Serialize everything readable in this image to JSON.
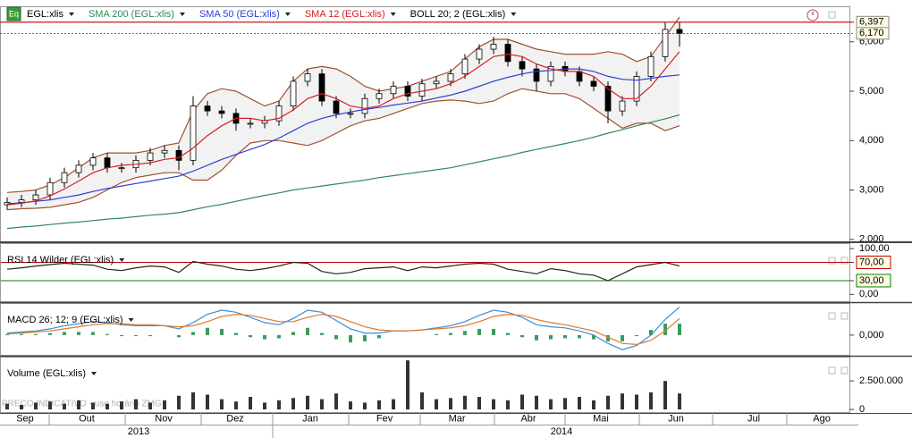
{
  "icon_label": "Eq",
  "watermark": "PREÇO INDICATIVO - uso horário ZMG",
  "chart_data": [
    {
      "type": "candlestick",
      "categories": [
        null,
        null,
        null,
        null,
        null,
        null,
        null,
        null,
        null,
        null,
        null,
        null,
        null,
        null,
        null,
        null,
        null,
        null,
        null,
        null,
        null,
        null,
        null,
        null,
        null,
        null,
        null,
        null,
        null,
        null,
        null,
        null,
        null,
        null,
        null,
        null,
        null,
        null,
        null,
        null,
        null,
        null,
        null,
        null,
        null,
        null,
        null,
        null
      ],
      "xlim": [
        -0.5,
        58.875
      ],
      "ylim": [
        1.96,
        6.52
      ],
      "yticks": [
        {
          "value": 2,
          "label": "2,000"
        },
        {
          "value": 3,
          "label": "3,000"
        },
        {
          "value": 4,
          "label": "4,000"
        },
        {
          "value": 5,
          "label": "5,000"
        },
        {
          "value": 6,
          "label": "6,000"
        }
      ],
      "price_labels": [
        {
          "value": 6.397,
          "label": "6,397",
          "color": "#c00000"
        },
        {
          "value": 6.17,
          "label": "6,170",
          "color": "#c00000"
        }
      ],
      "series": [
        {
          "name": "EGL:xlis",
          "type": "candlestick",
          "color": "#000000",
          "open": [
            2.7,
            2.75,
            2.8,
            2.9,
            3.15,
            3.35,
            3.5,
            3.65,
            3.45,
            3.45,
            3.6,
            3.75,
            3.8,
            3.6,
            4.7,
            4.6,
            4.55,
            4.35,
            4.35,
            4.4,
            4.7,
            5.2,
            5.35,
            4.8,
            4.55,
            4.55,
            4.85,
            4.95,
            5.1,
            4.9,
            5.15,
            5.2,
            5.35,
            5.65,
            5.85,
            5.95,
            5.6,
            5.45,
            5.2,
            5.5,
            5.4,
            5.2,
            5.1,
            4.6,
            4.8,
            5.3,
            5.7,
            6.25
          ],
          "high": [
            2.85,
            2.9,
            3.0,
            3.25,
            3.45,
            3.6,
            3.75,
            3.75,
            3.55,
            3.7,
            3.85,
            3.9,
            3.9,
            4.9,
            4.8,
            4.7,
            4.65,
            4.45,
            4.5,
            4.8,
            5.3,
            5.45,
            5.45,
            4.9,
            4.65,
            4.95,
            5.05,
            5.2,
            5.2,
            5.25,
            5.3,
            5.45,
            5.75,
            5.95,
            6.1,
            6.05,
            5.7,
            5.55,
            5.6,
            5.6,
            5.5,
            5.3,
            5.2,
            4.9,
            5.4,
            5.8,
            6.4,
            6.4
          ],
          "low": [
            2.6,
            2.65,
            2.7,
            2.8,
            3.05,
            3.25,
            3.4,
            3.35,
            3.35,
            3.35,
            3.5,
            3.65,
            3.4,
            3.5,
            4.5,
            4.45,
            4.2,
            4.25,
            4.25,
            4.3,
            4.6,
            5.1,
            4.7,
            4.45,
            4.45,
            4.45,
            4.75,
            4.85,
            4.8,
            4.8,
            5.05,
            5.1,
            5.25,
            5.55,
            5.75,
            5.5,
            5.3,
            5.0,
            5.1,
            5.3,
            5.1,
            5.0,
            4.35,
            4.5,
            4.7,
            5.2,
            5.6,
            5.9
          ],
          "close": [
            2.75,
            2.8,
            2.9,
            3.15,
            3.35,
            3.5,
            3.65,
            3.45,
            3.45,
            3.6,
            3.75,
            3.8,
            3.6,
            4.7,
            4.6,
            4.55,
            4.35,
            4.35,
            4.4,
            4.7,
            5.2,
            5.35,
            4.8,
            4.55,
            4.55,
            4.85,
            4.95,
            5.1,
            4.9,
            5.15,
            5.2,
            5.35,
            5.65,
            5.85,
            5.95,
            5.6,
            5.45,
            5.2,
            5.5,
            5.4,
            5.2,
            5.1,
            4.6,
            4.8,
            5.3,
            5.7,
            6.25,
            6.17
          ]
        },
        {
          "name": "SMA 200 (EGL:xlis)",
          "type": "line",
          "color": "#2e8b57",
          "values": [
            2.22,
            2.25,
            2.27,
            2.3,
            2.33,
            2.35,
            2.38,
            2.41,
            2.43,
            2.46,
            2.49,
            2.51,
            2.54,
            2.6,
            2.66,
            2.71,
            2.77,
            2.83,
            2.89,
            2.94,
            3.0,
            3.04,
            3.08,
            3.12,
            3.16,
            3.2,
            3.25,
            3.29,
            3.33,
            3.37,
            3.41,
            3.45,
            3.51,
            3.57,
            3.63,
            3.69,
            3.76,
            3.82,
            3.88,
            3.94,
            4.0,
            4.07,
            4.15,
            4.22,
            4.3,
            4.37,
            4.44,
            4.52
          ]
        },
        {
          "name": "SMA 50 (EGL:xlis)",
          "type": "line",
          "color": "#2d3ed6",
          "values": [
            2.72,
            2.74,
            2.77,
            2.8,
            2.85,
            2.9,
            2.97,
            3.03,
            3.08,
            3.13,
            3.18,
            3.23,
            3.28,
            3.38,
            3.5,
            3.62,
            3.72,
            3.82,
            3.92,
            4.05,
            4.2,
            4.35,
            4.45,
            4.52,
            4.58,
            4.63,
            4.67,
            4.72,
            4.76,
            4.8,
            4.86,
            4.92,
            5.0,
            5.1,
            5.2,
            5.28,
            5.35,
            5.4,
            5.42,
            5.45,
            5.45,
            5.4,
            5.3,
            5.24,
            5.22,
            5.26,
            5.3,
            5.33
          ]
        },
        {
          "name": "SMA 12 (EGL:xlis)",
          "type": "line",
          "color": "#d42020",
          "values": [
            2.7,
            2.73,
            2.78,
            2.88,
            3.02,
            3.18,
            3.35,
            3.45,
            3.5,
            3.52,
            3.55,
            3.62,
            3.65,
            3.85,
            4.1,
            4.3,
            4.45,
            4.45,
            4.4,
            4.45,
            4.62,
            4.85,
            4.95,
            4.85,
            4.7,
            4.65,
            4.7,
            4.85,
            4.95,
            5.0,
            5.05,
            5.15,
            5.3,
            5.5,
            5.7,
            5.75,
            5.7,
            5.55,
            5.45,
            5.4,
            5.4,
            5.3,
            5.05,
            4.85,
            4.85,
            5.1,
            5.45,
            5.8
          ]
        },
        {
          "name": "BOLL 20; 2 (EGL:xlis)",
          "type": "band",
          "color": "#a0522d",
          "upper": [
            2.95,
            2.97,
            3.0,
            3.1,
            3.25,
            3.45,
            3.65,
            3.75,
            3.75,
            3.75,
            3.8,
            3.9,
            3.95,
            4.6,
            4.95,
            5.05,
            5.0,
            4.85,
            4.7,
            4.8,
            5.2,
            5.45,
            5.5,
            5.45,
            5.3,
            5.1,
            5.0,
            5.05,
            5.1,
            5.2,
            5.3,
            5.4,
            5.65,
            5.9,
            6.05,
            6.05,
            5.95,
            5.85,
            5.8,
            5.75,
            5.75,
            5.75,
            5.8,
            5.75,
            5.6,
            5.7,
            6.1,
            6.5
          ],
          "lower": [
            2.6,
            2.62,
            2.63,
            2.65,
            2.7,
            2.75,
            2.85,
            3.0,
            3.15,
            3.25,
            3.3,
            3.35,
            3.35,
            3.2,
            3.2,
            3.4,
            3.7,
            3.95,
            4.0,
            4.0,
            3.95,
            3.9,
            4.0,
            4.15,
            4.3,
            4.4,
            4.45,
            4.55,
            4.65,
            4.75,
            4.8,
            4.82,
            4.8,
            4.75,
            4.8,
            4.95,
            5.05,
            5.0,
            4.95,
            4.95,
            4.85,
            4.65,
            4.45,
            4.25,
            4.35,
            4.35,
            4.2,
            4.3
          ]
        }
      ]
    },
    {
      "type": "line",
      "title": "RSI 14 Wilder (EGL:xlis)",
      "xlim": [
        -0.5,
        58.875
      ],
      "ylim": [
        -15,
        110
      ],
      "yticks": [
        {
          "value": 0,
          "label": "0,00"
        },
        {
          "value": 30,
          "label": "30,00"
        },
        {
          "value": 70,
          "label": "70,00"
        },
        {
          "value": 100,
          "label": "100,00"
        }
      ],
      "reference_lines": [
        {
          "value": 70,
          "color": "#c00000"
        },
        {
          "value": 30,
          "color": "#008000"
        }
      ],
      "series": [
        {
          "type": "line",
          "color": "#222222",
          "values": [
            55,
            58,
            62,
            65,
            68,
            66,
            64,
            55,
            52,
            58,
            62,
            60,
            48,
            72,
            66,
            62,
            55,
            52,
            56,
            62,
            70,
            68,
            50,
            45,
            48,
            56,
            58,
            60,
            52,
            60,
            58,
            62,
            66,
            68,
            66,
            55,
            50,
            45,
            56,
            52,
            45,
            42,
            30,
            45,
            60,
            65,
            70,
            62
          ]
        }
      ]
    },
    {
      "type": "line",
      "title": "MACD 26; 12; 9 (EGL:xlis)",
      "xlim": [
        -0.5,
        58.875
      ],
      "ylim": [
        -0.19,
        0.3
      ],
      "yticks": [
        {
          "value": 0,
          "label": "0,000"
        }
      ],
      "series": [
        {
          "type": "bar",
          "color": "#3c9a5f",
          "values": [
            0.01,
            0.01,
            0.01,
            0.02,
            0.03,
            0.03,
            0.03,
            0.01,
            -0.01,
            -0.01,
            -0.01,
            0,
            -0.02,
            0.03,
            0.07,
            0.06,
            0.02,
            -0.02,
            -0.04,
            -0.03,
            0.03,
            0.07,
            0.02,
            -0.04,
            -0.07,
            -0.06,
            -0.03,
            0,
            0,
            0,
            0.01,
            0.02,
            0.04,
            0.06,
            0.06,
            0.02,
            -0.02,
            -0.05,
            -0.04,
            -0.03,
            -0.03,
            -0.04,
            -0.06,
            -0.06,
            -0.01,
            0.05,
            0.11,
            0.11
          ]
        },
        {
          "type": "line",
          "color": "#3b8fd9",
          "values": [
            0.02,
            0.03,
            0.04,
            0.06,
            0.09,
            0.11,
            0.13,
            0.12,
            0.1,
            0.09,
            0.09,
            0.09,
            0.06,
            0.12,
            0.2,
            0.24,
            0.22,
            0.17,
            0.12,
            0.1,
            0.16,
            0.24,
            0.22,
            0.14,
            0.06,
            0.02,
            0.02,
            0.04,
            0.04,
            0.05,
            0.07,
            0.09,
            0.13,
            0.19,
            0.24,
            0.22,
            0.17,
            0.1,
            0.08,
            0.07,
            0.04,
            0.0,
            -0.08,
            -0.14,
            -0.1,
            0.0,
            0.15,
            0.27
          ]
        },
        {
          "type": "line",
          "color": "#e0782a",
          "values": [
            0.01,
            0.02,
            0.03,
            0.04,
            0.06,
            0.08,
            0.1,
            0.11,
            0.11,
            0.1,
            0.1,
            0.09,
            0.08,
            0.09,
            0.13,
            0.18,
            0.2,
            0.19,
            0.16,
            0.13,
            0.13,
            0.17,
            0.2,
            0.18,
            0.13,
            0.08,
            0.05,
            0.04,
            0.04,
            0.05,
            0.06,
            0.07,
            0.09,
            0.13,
            0.18,
            0.2,
            0.19,
            0.15,
            0.12,
            0.1,
            0.07,
            0.04,
            -0.02,
            -0.08,
            -0.09,
            -0.05,
            0.04,
            0.16
          ]
        }
      ]
    },
    {
      "type": "bar",
      "title": "Volume (EGL:xlis)",
      "xlim": [
        -0.5,
        58.875
      ],
      "ylim": [
        -230000,
        4550000
      ],
      "yticks": [
        0,
        {
          "value": 2500000,
          "label": "2.500.000"
        }
      ],
      "color": "#333333",
      "values": [
        500000,
        400000,
        600000,
        700000,
        500000,
        800000,
        600000,
        500000,
        700000,
        900000,
        600000,
        800000,
        1200000,
        1500000,
        1300000,
        900000,
        700000,
        1100000,
        600000,
        800000,
        1000000,
        1200000,
        900000,
        1400000,
        700000,
        600000,
        800000,
        900000,
        4300000,
        1500000,
        900000,
        1000000,
        1200000,
        1100000,
        900000,
        800000,
        1300000,
        1200000,
        900000,
        1000000,
        1100000,
        800000,
        1200000,
        1400000,
        1300000,
        1500000,
        2500000,
        1400000
      ],
      "xticks": [
        {
          "value": 1.25,
          "label": "Sep"
        },
        {
          "value": 5.56,
          "label": "Out"
        },
        {
          "value": 10.94,
          "label": "Nov"
        },
        {
          "value": 15.94,
          "label": "Dez"
        },
        {
          "value": 21.19,
          "label": "Jan"
        },
        {
          "value": 26.38,
          "label": "Fev"
        },
        {
          "value": 31.44,
          "label": "Mar"
        },
        {
          "value": 36.44,
          "label": "Abr"
        },
        {
          "value": 41.5,
          "label": "Mai"
        },
        {
          "value": 46.75,
          "label": "Jun"
        },
        {
          "value": 52.19,
          "label": "Jul"
        },
        {
          "value": 56.94,
          "label": "Ago"
        }
      ],
      "year_ticks": [
        {
          "value": 9.19,
          "label": "2013"
        },
        {
          "value": 38.75,
          "label": "2014"
        }
      ]
    }
  ]
}
